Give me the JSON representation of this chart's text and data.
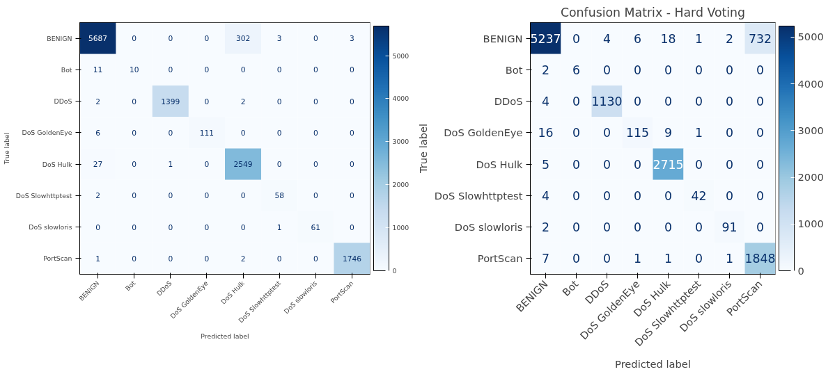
{
  "chart_data": [
    {
      "type": "heatmap",
      "xlabel": "Predicted label",
      "ylabel": "True label",
      "data_labels": true,
      "categories": [
        "BENIGN",
        "Bot",
        "DDoS",
        "DoS GoldenEye",
        "DoS Hulk",
        "DoS Slowhttptest",
        "DoS slowloris",
        "PortScan"
      ],
      "y_categories": [
        "BENIGN",
        "Bot",
        "DDoS",
        "DoS GoldenEye",
        "DoS Hulk",
        "DoS Slowhttptest",
        "DoS slowloris",
        "PortScan"
      ],
      "cells": [
        [
          5687,
          0,
          0,
          0,
          302,
          3,
          0,
          3
        ],
        [
          11,
          10,
          0,
          0,
          0,
          0,
          0,
          0
        ],
        [
          2,
          0,
          1399,
          0,
          2,
          0,
          0,
          0
        ],
        [
          6,
          0,
          0,
          111,
          0,
          0,
          0,
          0
        ],
        [
          27,
          0,
          1,
          0,
          2549,
          0,
          0,
          0
        ],
        [
          2,
          0,
          0,
          0,
          0,
          58,
          0,
          0
        ],
        [
          0,
          0,
          0,
          0,
          0,
          1,
          61,
          0
        ],
        [
          1,
          0,
          0,
          0,
          2,
          0,
          0,
          1746
        ]
      ],
      "clim": [
        0,
        5687
      ],
      "cticks": [
        0,
        1000,
        2000,
        3000,
        4000,
        5000
      ]
    },
    {
      "type": "heatmap",
      "title": "Confusion Matrix - Hard Voting",
      "xlabel": "Predicted label",
      "ylabel": "True label",
      "data_labels": true,
      "categories": [
        "BENIGN",
        "Bot",
        "DDoS",
        "DoS GoldenEye",
        "DoS Hulk",
        "DoS Slowhttptest",
        "DoS slowloris",
        "PortScan"
      ],
      "y_categories": [
        "BENIGN",
        "Bot",
        "DDoS",
        "DoS GoldenEye",
        "DoS Hulk",
        "DoS Slowhttptest",
        "DoS slowloris",
        "PortScan"
      ],
      "cells": [
        [
          5237,
          0,
          4,
          6,
          18,
          1,
          2,
          732
        ],
        [
          2,
          6,
          0,
          0,
          0,
          0,
          0,
          0
        ],
        [
          4,
          0,
          1130,
          0,
          0,
          0,
          0,
          0
        ],
        [
          16,
          0,
          0,
          115,
          9,
          1,
          0,
          0
        ],
        [
          5,
          0,
          0,
          0,
          2715,
          0,
          0,
          0
        ],
        [
          4,
          0,
          0,
          0,
          0,
          42,
          0,
          0
        ],
        [
          2,
          0,
          0,
          0,
          0,
          0,
          91,
          0
        ],
        [
          7,
          0,
          0,
          1,
          1,
          0,
          1,
          1848
        ]
      ],
      "clim": [
        0,
        5237
      ],
      "cticks": [
        0,
        1000,
        2000,
        3000,
        4000,
        5000
      ]
    }
  ]
}
